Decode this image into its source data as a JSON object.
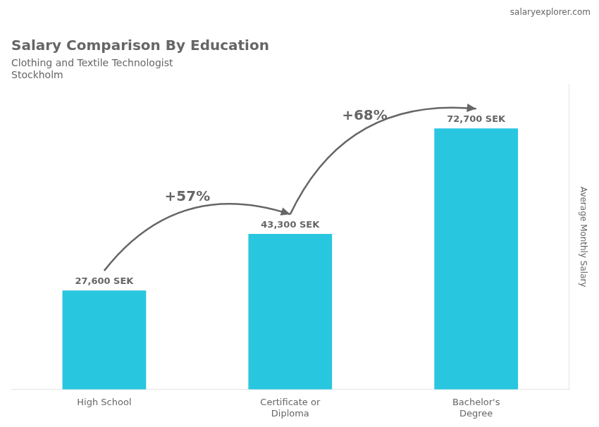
{
  "chart_data": {
    "type": "bar",
    "title": "Salary Comparison By Education",
    "subtitle": "Clothing and Textile Technologist",
    "city": "Stockholm",
    "source": "salaryexplorer.com",
    "ylabel": "Average Monthly Salary",
    "categories": [
      "High School",
      "Certificate or\nDiploma",
      "Bachelor's\nDegree"
    ],
    "values": [
      27600,
      43300,
      72700
    ],
    "value_labels": [
      "27,600 SEK",
      "43,300 SEK",
      "72,700 SEK"
    ],
    "data_labels": true,
    "color": "#29c6e0",
    "ylim": [
      0,
      85000
    ],
    "tick_labels": "x",
    "grid": false,
    "annotations": [
      {
        "text": "+57%",
        "from": "High School",
        "to": "Certificate or\nDiploma"
      },
      {
        "text": "+68%",
        "from": "Certificate or\nDiploma",
        "to": "Bachelor's\nDegree"
      }
    ]
  }
}
